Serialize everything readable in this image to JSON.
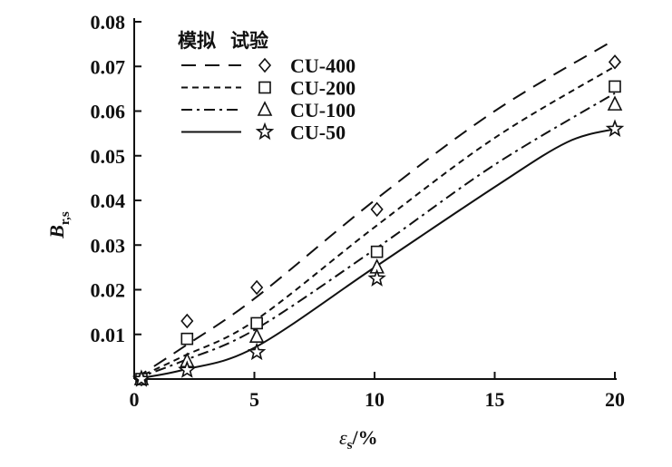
{
  "chart_data": {
    "type": "line",
    "title": "",
    "xlabel": "εs/%",
    "xlabel_main": "ε",
    "xlabel_sub": "s",
    "xlabel_unit": "/%",
    "ylabel": "Br,s",
    "ylabel_main": "B",
    "ylabel_sub": "r,s",
    "xlim": [
      0,
      20
    ],
    "ylim": [
      0,
      0.08
    ],
    "xticks": [
      0,
      5,
      10,
      15,
      20
    ],
    "xtick_labels": [
      "0",
      "5",
      "10",
      "15",
      "20"
    ],
    "yticks": [
      0.01,
      0.02,
      0.03,
      0.04,
      0.05,
      0.06,
      0.07,
      0.08
    ],
    "ytick_labels": [
      "0.01",
      "0.02",
      "0.03",
      "0.04",
      "0.05",
      "0.06",
      "0.07",
      "0.08"
    ],
    "grid": false,
    "legend_placement": "top-left",
    "legend_header": [
      "模拟",
      "试验"
    ],
    "series": [
      {
        "name": "CU-400",
        "dash": "dashed-long",
        "marker": "diamond",
        "sim_x": [
          0,
          2,
          5,
          10,
          15,
          20
        ],
        "sim_y": [
          0,
          0.007,
          0.018,
          0.04,
          0.06,
          0.076
        ],
        "test_x": [
          0.3,
          2.2,
          5.1,
          10.1,
          20
        ],
        "test_y": [
          0,
          0.013,
          0.0205,
          0.038,
          0.071
        ]
      },
      {
        "name": "CU-200",
        "dash": "dashed-short",
        "marker": "square",
        "sim_x": [
          0,
          2,
          5,
          10,
          15,
          20
        ],
        "sim_y": [
          0,
          0.005,
          0.013,
          0.034,
          0.054,
          0.07
        ],
        "test_x": [
          0.3,
          2.2,
          5.1,
          10.1,
          20
        ],
        "test_y": [
          0,
          0.009,
          0.0125,
          0.0285,
          0.0655
        ]
      },
      {
        "name": "CU-100",
        "dash": "dash-dot",
        "marker": "triangle",
        "sim_x": [
          0,
          2,
          5,
          10,
          15,
          20
        ],
        "sim_y": [
          0,
          0.004,
          0.011,
          0.029,
          0.048,
          0.064
        ],
        "test_x": [
          0.3,
          2.2,
          5.1,
          10.1,
          20
        ],
        "test_y": [
          0,
          0.004,
          0.0095,
          0.025,
          0.0615
        ]
      },
      {
        "name": "CU-50",
        "dash": "solid",
        "marker": "star",
        "sim_x": [
          0,
          2,
          5,
          10,
          15,
          18,
          20
        ],
        "sim_y": [
          0,
          0.002,
          0.007,
          0.025,
          0.043,
          0.053,
          0.056
        ],
        "test_x": [
          0.3,
          2.2,
          5.1,
          10.1,
          20
        ],
        "test_y": [
          0,
          0.002,
          0.006,
          0.0225,
          0.056
        ]
      }
    ]
  }
}
